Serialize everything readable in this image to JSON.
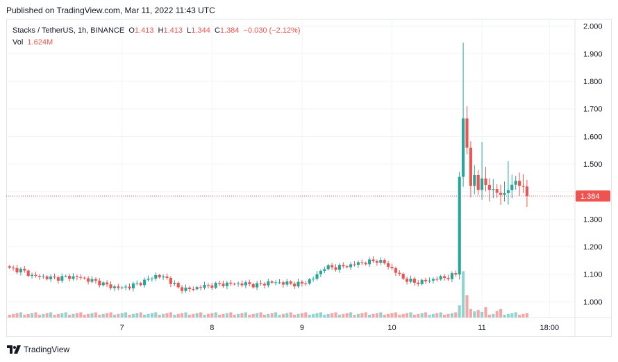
{
  "header": {
    "published": "Published on TradingView.com, Mar 11, 2022 11:43 UTC"
  },
  "legend": {
    "symbol": "Stacks / TetherUS, 1h, BINANCE",
    "o_label": "O",
    "o_value": "1.413",
    "h_label": "H",
    "h_value": "1.413",
    "l_label": "L",
    "l_value": "1.344",
    "c_label": "C",
    "c_value": "1.384",
    "change": "−0.030 (−2.12%)",
    "vol_label": "Vol",
    "vol_value": "1.624M"
  },
  "footer": {
    "brand": "TradingView",
    "logo_icon": "tradingview-logo-icon"
  },
  "colors": {
    "up": "#26a69a",
    "down": "#ef5350",
    "up_vol": "#8fd4cd",
    "down_vol": "#f5a6a6",
    "grid": "#f0f3fa",
    "price_line": "#ef5350"
  },
  "chart_data": {
    "type": "candlestick",
    "symbol": "Stacks / TetherUS",
    "interval": "1h",
    "exchange": "BINANCE",
    "y_axis": {
      "ticks": [
        "2.000",
        "1.900",
        "1.800",
        "1.700",
        "1.600",
        "1.500",
        "1.400",
        "1.300",
        "1.200",
        "1.100",
        "1.000"
      ],
      "range": [
        0.943,
        2.027
      ],
      "side": "right"
    },
    "x_axis": {
      "ticks": [
        {
          "label": "7",
          "bar": 30
        },
        {
          "label": "8",
          "bar": 54
        },
        {
          "label": "9",
          "bar": 78
        },
        {
          "label": "10",
          "bar": 102
        },
        {
          "label": "11",
          "bar": 126
        },
        {
          "label": "18:00",
          "bar": 144
        }
      ]
    },
    "last_price": "1.384",
    "grid": true,
    "candles_close_anchors": [
      [
        0,
        1.12
      ],
      [
        3,
        1.115
      ],
      [
        6,
        1.095
      ],
      [
        9,
        1.09
      ],
      [
        12,
        1.085
      ],
      [
        15,
        1.09
      ],
      [
        18,
        1.09
      ],
      [
        21,
        1.08
      ],
      [
        24,
        1.07
      ],
      [
        27,
        1.055
      ],
      [
        30,
        1.05
      ],
      [
        33,
        1.06
      ],
      [
        36,
        1.075
      ],
      [
        39,
        1.095
      ],
      [
        42,
        1.085
      ],
      [
        45,
        1.05
      ],
      [
        48,
        1.045
      ],
      [
        51,
        1.055
      ],
      [
        54,
        1.06
      ],
      [
        57,
        1.065
      ],
      [
        60,
        1.065
      ],
      [
        63,
        1.065
      ],
      [
        66,
        1.06
      ],
      [
        69,
        1.07
      ],
      [
        72,
        1.07
      ],
      [
        75,
        1.065
      ],
      [
        78,
        1.065
      ],
      [
        81,
        1.085
      ],
      [
        84,
        1.125
      ],
      [
        87,
        1.125
      ],
      [
        90,
        1.13
      ],
      [
        93,
        1.14
      ],
      [
        96,
        1.145
      ],
      [
        98,
        1.15
      ],
      [
        100,
        1.14
      ],
      [
        102,
        1.12
      ],
      [
        105,
        1.085
      ],
      [
        108,
        1.07
      ],
      [
        111,
        1.075
      ],
      [
        114,
        1.085
      ],
      [
        117,
        1.09
      ],
      [
        119,
        1.1
      ],
      [
        120,
        1.46
      ],
      [
        121,
        1.66
      ],
      [
        122,
        1.56
      ],
      [
        123,
        1.42
      ],
      [
        124,
        1.46
      ],
      [
        125,
        1.41
      ],
      [
        126,
        1.44
      ],
      [
        129,
        1.4
      ],
      [
        132,
        1.39
      ],
      [
        135,
        1.44
      ],
      [
        137,
        1.41
      ],
      [
        138,
        1.384
      ]
    ],
    "spike": {
      "bar": 121,
      "high": 1.94
    },
    "volume": {
      "typical": 1,
      "spike_values": [
        [
          120,
          2.6
        ],
        [
          121,
          9.8
        ],
        [
          122,
          4.7
        ],
        [
          123,
          1.8
        ],
        [
          124,
          1.3
        ],
        [
          125,
          1.6
        ],
        [
          126,
          1.2
        ],
        [
          127,
          2.2
        ],
        [
          130,
          1.4
        ],
        [
          131,
          1.8
        ]
      ],
      "last": "1.624M"
    }
  }
}
